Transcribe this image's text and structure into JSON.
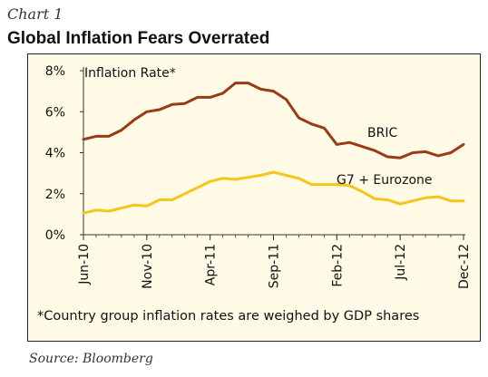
{
  "chart_label": "Chart 1",
  "source": "Source: Bloomberg",
  "colors": {
    "bric": "#9b3a14",
    "g7": "#f5c518",
    "background": "#fffbe6"
  },
  "chart_data": {
    "type": "line",
    "title": "Global Inflation Fears Overrated",
    "annotation": "Inflation Rate*",
    "footnote": "*Country group inflation rates are weighed by GDP shares",
    "xlabel": "",
    "ylabel": "",
    "ylim": [
      0,
      8
    ],
    "yticks": [
      "0%",
      "2%",
      "4%",
      "6%",
      "8%"
    ],
    "x_tick_labels": [
      "Jun-10",
      "Nov-10",
      "Apr-11",
      "Sep-11",
      "Feb-12",
      "Jul-12",
      "Dec-12"
    ],
    "x": [
      "Jun-10",
      "Jul-10",
      "Aug-10",
      "Sep-10",
      "Oct-10",
      "Nov-10",
      "Dec-10",
      "Jan-11",
      "Feb-11",
      "Mar-11",
      "Apr-11",
      "May-11",
      "Jun-11",
      "Jul-11",
      "Aug-11",
      "Sep-11",
      "Oct-11",
      "Nov-11",
      "Dec-11",
      "Jan-12",
      "Feb-12",
      "Mar-12",
      "Apr-12",
      "May-12",
      "Jun-12",
      "Jul-12",
      "Aug-12",
      "Sep-12",
      "Oct-12",
      "Nov-12",
      "Dec-12"
    ],
    "grid": false,
    "series": [
      {
        "name": "BRIC",
        "values": [
          4.65,
          4.8,
          4.8,
          5.1,
          5.6,
          6.0,
          6.1,
          6.35,
          6.4,
          6.7,
          6.7,
          6.9,
          7.4,
          7.4,
          7.1,
          7.0,
          6.6,
          5.7,
          5.4,
          5.2,
          4.4,
          4.5,
          4.3,
          4.1,
          3.8,
          3.75,
          4.0,
          4.05,
          3.85,
          4.0,
          4.4
        ]
      },
      {
        "name": "G7 + Eurozone",
        "values": [
          1.05,
          1.2,
          1.15,
          1.3,
          1.45,
          1.4,
          1.7,
          1.7,
          2.0,
          2.3,
          2.6,
          2.75,
          2.7,
          2.8,
          2.9,
          3.05,
          2.9,
          2.75,
          2.45,
          2.45,
          2.45,
          2.4,
          2.1,
          1.75,
          1.7,
          1.5,
          1.65,
          1.8,
          1.85,
          1.65,
          1.65
        ]
      }
    ]
  }
}
